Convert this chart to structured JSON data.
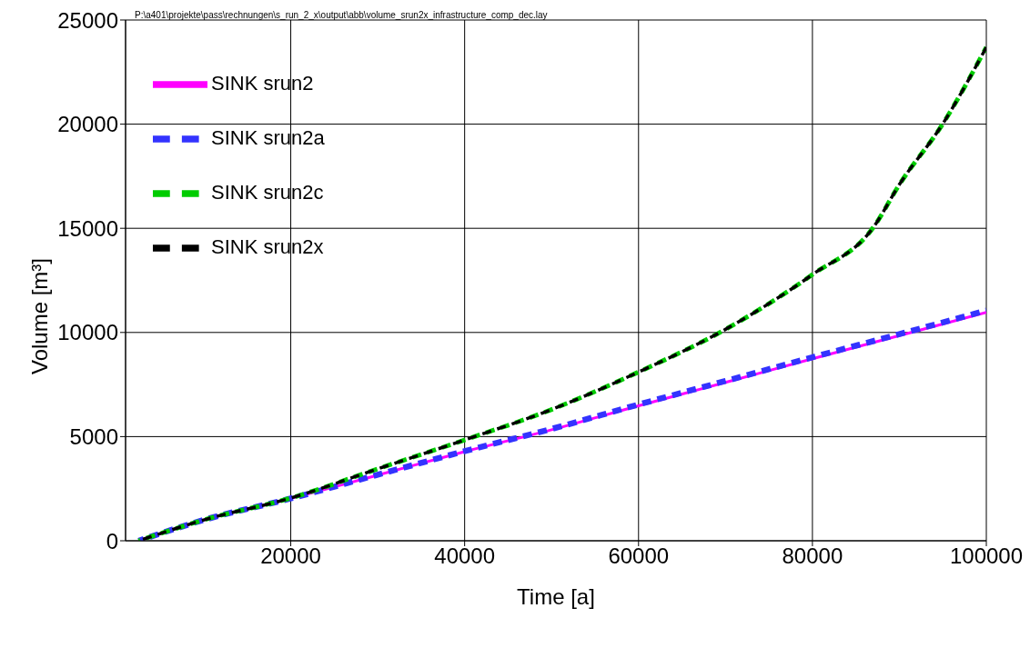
{
  "chart_data": {
    "type": "line",
    "xlabel": "Time [a]",
    "ylabel": "Volume [m³]",
    "annotations": [
      "P:\\a401\\projekte\\pass\\rechnungen\\s_run_2_x\\output\\abb\\volume_srun2x_infrastructure_comp_dec.lay"
    ],
    "xlim": [
      1000,
      100000
    ],
    "xticks": [
      20000,
      40000,
      60000,
      80000,
      100000
    ],
    "ylim": [
      0,
      25000
    ],
    "yticks": [
      0,
      5000,
      10000,
      15000,
      20000,
      25000
    ],
    "grid": true,
    "legend": "top left",
    "x": [
      2500,
      10000,
      20000,
      30000,
      40000,
      50000,
      60000,
      70000,
      80000,
      90000,
      100000
    ],
    "series": [
      {
        "name": "SINK srun2",
        "color": "#ff00ff",
        "line_style": "solid",
        "values": [
          0,
          1000,
          2030,
          3150,
          4280,
          5330,
          6480,
          7600,
          8740,
          9850,
          10960
        ]
      },
      {
        "name": "SINK srun2a",
        "color": "#3333ff",
        "line_style": "dashed",
        "values": [
          0,
          1000,
          2030,
          3170,
          4300,
          5370,
          6540,
          7670,
          8810,
          9920,
          11050
        ]
      },
      {
        "name": "SINK srun2c",
        "color": "#00cc00",
        "line_style": "dashed",
        "x": [
          2500,
          10000,
          20000,
          30000,
          40000,
          50000,
          60000,
          70000,
          80000,
          87000,
          90000,
          95000,
          100000
        ],
        "values": [
          0,
          1000,
          2050,
          3450,
          4840,
          6300,
          8100,
          10150,
          12780,
          15040,
          17100,
          20020,
          23690
        ]
      },
      {
        "name": "SINK srun2x",
        "color": "#000000",
        "line_style": "dashed",
        "x": [
          2500,
          10000,
          20000,
          30000,
          40000,
          50000,
          60000,
          70000,
          80000,
          87000,
          90000,
          95000,
          100000
        ],
        "values": [
          0,
          1000,
          2050,
          3450,
          4840,
          6300,
          8100,
          10150,
          12780,
          15040,
          17100,
          20020,
          23690
        ]
      }
    ]
  }
}
